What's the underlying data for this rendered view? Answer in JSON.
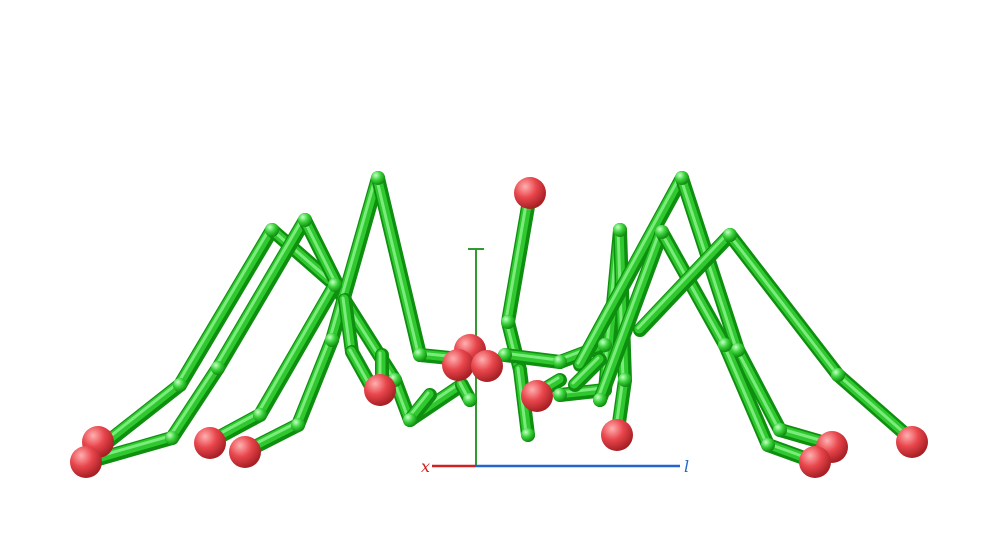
{
  "scene": {
    "background": "#ffffff",
    "colors": {
      "limb": "#2fc82f",
      "limb_dark": "#0f8f0f",
      "limb_light": "#8ef58e",
      "joint": "#55e055",
      "foot": "#e8464c",
      "foot_light": "#ff9a9a",
      "foot_dark": "#a82025"
    }
  },
  "axes": {
    "x": {
      "label": "x",
      "color": "#cc2222"
    },
    "l": {
      "label": "l",
      "color": "#2266cc"
    },
    "vertical": {
      "label": "",
      "color": "#339933"
    }
  }
}
